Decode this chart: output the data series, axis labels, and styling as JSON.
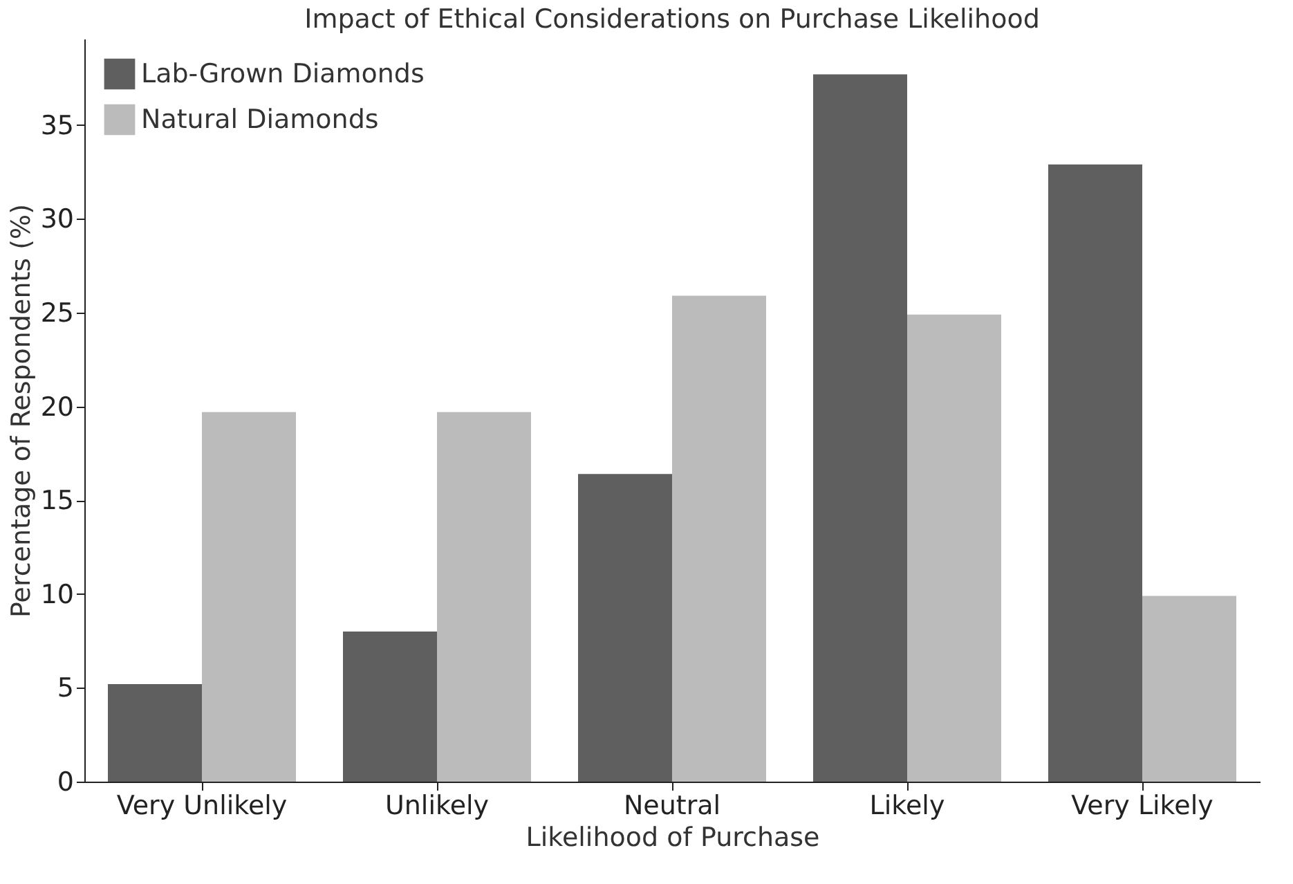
{
  "chart_data": {
    "type": "bar",
    "title": "Impact of Ethical Considerations on Purchase Likelihood",
    "xlabel": "Likelihood of Purchase",
    "ylabel": "Percentage of Respondents (%)",
    "categories": [
      "Very Unlikely",
      "Unlikely",
      "Neutral",
      "Likely",
      "Very Likely"
    ],
    "series": [
      {
        "name": "Lab-Grown Diamonds",
        "color": "#5f5f5f",
        "values": [
          5.2,
          8.0,
          16.4,
          37.7,
          32.9
        ]
      },
      {
        "name": "Natural Diamonds",
        "color": "#bbbbbb",
        "values": [
          19.7,
          19.7,
          25.9,
          24.9,
          9.9
        ]
      }
    ],
    "ylim": [
      0,
      39.6
    ],
    "yticks": [
      0,
      5,
      10,
      15,
      20,
      25,
      30,
      35
    ],
    "grid": false,
    "legend": "top left"
  }
}
